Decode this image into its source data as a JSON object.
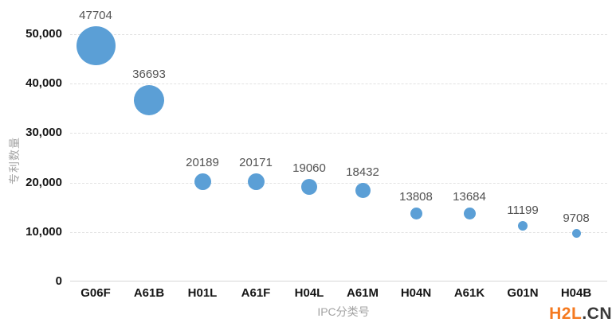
{
  "watermark": {
    "brand": "H2L",
    "suffix": ".CN",
    "brand_color": "#f57a20",
    "suffix_color": "#3a3a3a"
  },
  "chart_data": {
    "type": "scatter",
    "subtype": "bubble",
    "title": "",
    "xlabel": "IPC分类号",
    "ylabel": "专利数量",
    "categories": [
      "G06F",
      "A61B",
      "H01L",
      "A61F",
      "H04L",
      "A61M",
      "H04N",
      "A61K",
      "G01N",
      "H04B"
    ],
    "values": [
      47704,
      36693,
      20189,
      20171,
      19060,
      18432,
      13808,
      13684,
      11199,
      9708
    ],
    "value_labels": [
      "47704",
      "36693",
      "20189",
      "20171",
      "19060",
      "18432",
      "13808",
      "13684",
      "11199",
      "9708"
    ],
    "ylim": [
      0,
      50000
    ],
    "yticks": [
      0,
      10000,
      20000,
      30000,
      40000,
      50000
    ],
    "ytick_labels": [
      "0",
      "10,000",
      "20,000",
      "30,000",
      "40,000",
      "50,000"
    ],
    "grid": "horizontal-dashed",
    "legend_position": "none",
    "bubble_color": "#5b9fd6",
    "size_encoding": "bubble diameter proportional to value"
  }
}
